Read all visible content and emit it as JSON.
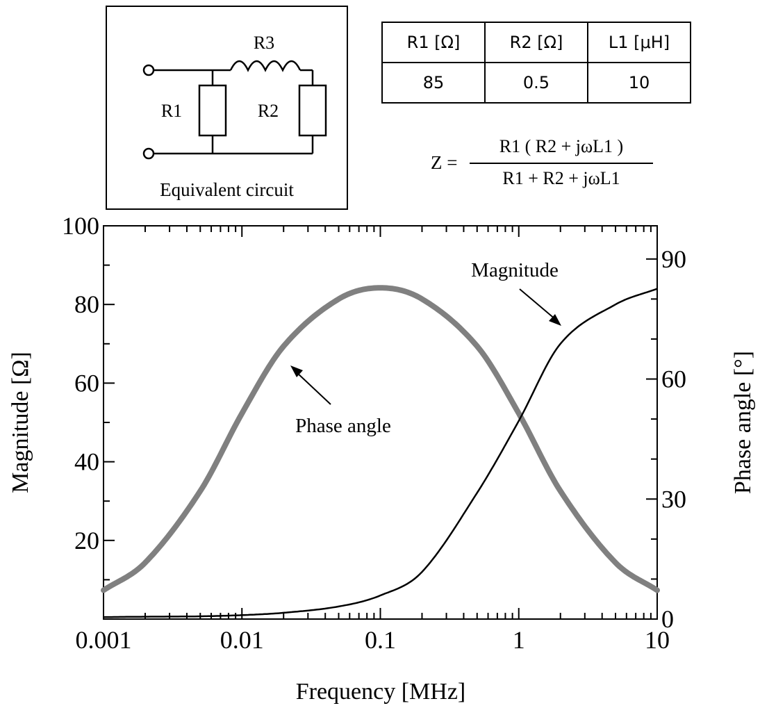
{
  "circuit": {
    "labels": {
      "r1": "R1",
      "r2": "R2",
      "r3": "R3"
    },
    "caption": "Equivalent circuit"
  },
  "params_table": {
    "headers": [
      "R1 [Ω]",
      "R2 [Ω]",
      "L1 [μH]"
    ],
    "values": [
      "85",
      "0.5",
      "10"
    ]
  },
  "formula": {
    "lhs": "Z =",
    "numerator": "R1 ( R2 + jωL1 )",
    "denominator": "R1 + R2 + jωL1"
  },
  "chart_data": {
    "type": "line",
    "xlabel": "Frequency [MHz]",
    "ylabel": "Magnitude [Ω]",
    "y2label": "Phase angle [°]",
    "xscale": "log",
    "xlim": [
      0.001,
      10
    ],
    "ylim": [
      0,
      100
    ],
    "y2lim": [
      0,
      98.3
    ],
    "x_ticks": [
      "0.001",
      "0.01",
      "0.1",
      "1",
      "10"
    ],
    "y_ticks": [
      "20",
      "40",
      "60",
      "80",
      "100"
    ],
    "y2_ticks": [
      "0",
      "30",
      "60",
      "90"
    ],
    "grid": false,
    "annotations": [
      "Magnitude",
      "Phase angle"
    ],
    "x": [
      0.001,
      0.002,
      0.005,
      0.01,
      0.02,
      0.05,
      0.1,
      0.2,
      0.5,
      1,
      2,
      5,
      10
    ],
    "series": [
      {
        "name": "Magnitude",
        "axis": "left",
        "color": "#000000",
        "values": [
          0.5,
          0.6,
          0.7,
          1.0,
          1.6,
          3.2,
          6.0,
          12.0,
          32.1,
          50.4,
          70.0,
          80.0,
          84.0
        ]
      },
      {
        "name": "Phase angle",
        "axis": "right",
        "color": "#808080",
        "values": [
          7.2,
          14.1,
          32.0,
          51.4,
          68.2,
          80.0,
          82.8,
          80.0,
          68.2,
          51.4,
          32.0,
          14.1,
          7.2
        ]
      }
    ]
  }
}
